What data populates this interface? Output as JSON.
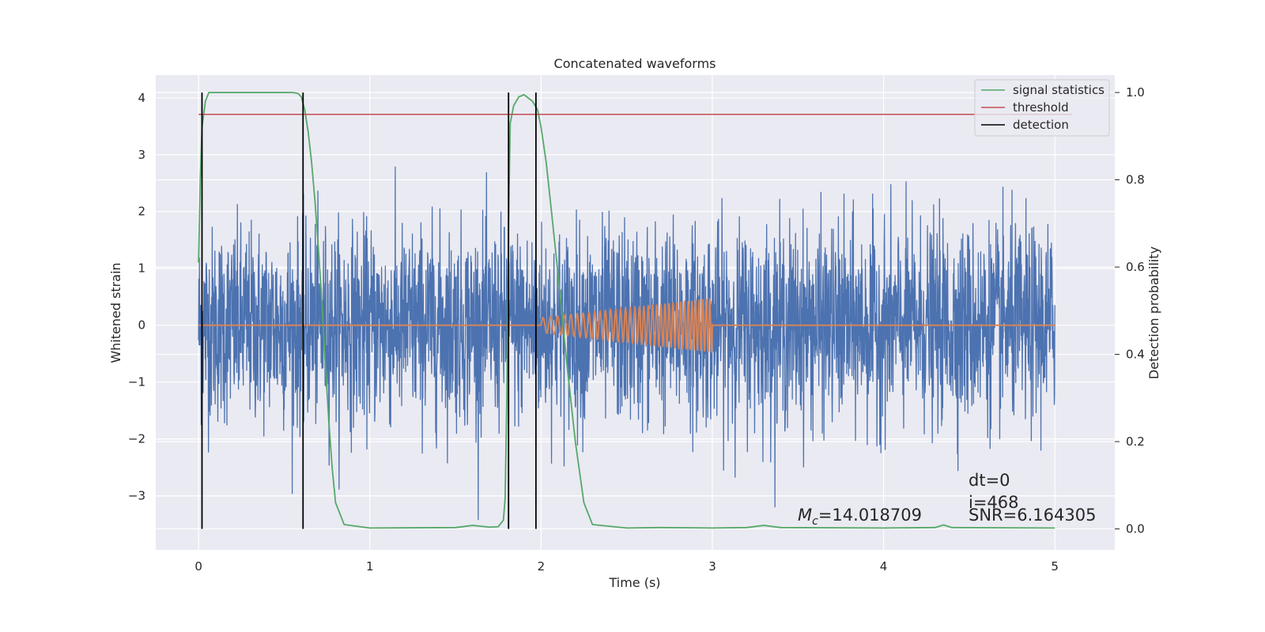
{
  "chart_data": {
    "type": "line",
    "title": "Concatenated waveforms",
    "xlabel": "Time (s)",
    "ylabel": "Whitened strain",
    "y2label": "Detection probability",
    "xlim": [
      -0.25,
      5.35
    ],
    "ylim": [
      -3.95,
      4.4
    ],
    "y2lim": [
      -0.048,
      1.04
    ],
    "x_ticks": [
      "0",
      "1",
      "2",
      "3",
      "4",
      "5"
    ],
    "y_ticks": [
      "4",
      "3",
      "2",
      "1",
      "0",
      "−1",
      "−2",
      "−3"
    ],
    "y2_ticks": [
      "1.0",
      "0.8",
      "0.6",
      "0.4",
      "0.2",
      "0.0"
    ],
    "grid": true,
    "legend_position": "top-right",
    "legend": [
      "signal statistics",
      "threshold",
      "detection"
    ],
    "colors": {
      "strain": "#4c72b0",
      "injection": "#dd8452",
      "signal_statistics": "#55a868",
      "threshold": "#c44e52",
      "detection": "#000000",
      "background": "#eaeaf2"
    },
    "strain": {
      "x_range": [
        0,
        5
      ],
      "typical_envelope": [
        -2.0,
        2.5
      ],
      "extremes": [
        -3.6,
        3.9
      ]
    },
    "injection": {
      "flat_value": 0,
      "chirp_start": 2.0,
      "chirp_end": 3.0,
      "amplitude_start": 0.13,
      "amplitude_end": 0.48
    },
    "signal_statistics": {
      "x": [
        0,
        0.01,
        0.02,
        0.04,
        0.06,
        0.1,
        0.3,
        0.55,
        0.58,
        0.6,
        0.62,
        0.64,
        0.66,
        0.68,
        0.7,
        0.72,
        0.74,
        0.76,
        0.78,
        0.8,
        0.85,
        1.0,
        1.5,
        1.6,
        1.7,
        1.75,
        1.78,
        1.79,
        1.8,
        1.81,
        1.82,
        1.84,
        1.87,
        1.9,
        1.95,
        1.98,
        2.0,
        2.03,
        2.06,
        2.1,
        2.15,
        2.2,
        2.25,
        2.3,
        2.5,
        2.7,
        3.0,
        3.2,
        3.3,
        3.4,
        4.0,
        4.3,
        4.35,
        4.4,
        5.0
      ],
      "y": [
        0.61,
        0.8,
        0.92,
        0.98,
        1.0,
        1.0,
        1.0,
        1.0,
        0.998,
        0.99,
        0.96,
        0.91,
        0.84,
        0.75,
        0.64,
        0.52,
        0.38,
        0.25,
        0.14,
        0.06,
        0.01,
        0.002,
        0.003,
        0.008,
        0.004,
        0.005,
        0.02,
        0.07,
        0.3,
        0.7,
        0.93,
        0.97,
        0.99,
        0.995,
        0.98,
        0.96,
        0.92,
        0.84,
        0.73,
        0.58,
        0.38,
        0.2,
        0.06,
        0.01,
        0.002,
        0.003,
        0.002,
        0.003,
        0.008,
        0.003,
        0.002,
        0.003,
        0.009,
        0.003,
        0.002
      ]
    },
    "threshold": 0.95,
    "detections": [
      0.02,
      0.61,
      1.81,
      1.97
    ],
    "annotations": {
      "mc": "=14.018709",
      "dt": "dt=0",
      "i": "i=468",
      "snr": "SNR=6.164305"
    }
  }
}
